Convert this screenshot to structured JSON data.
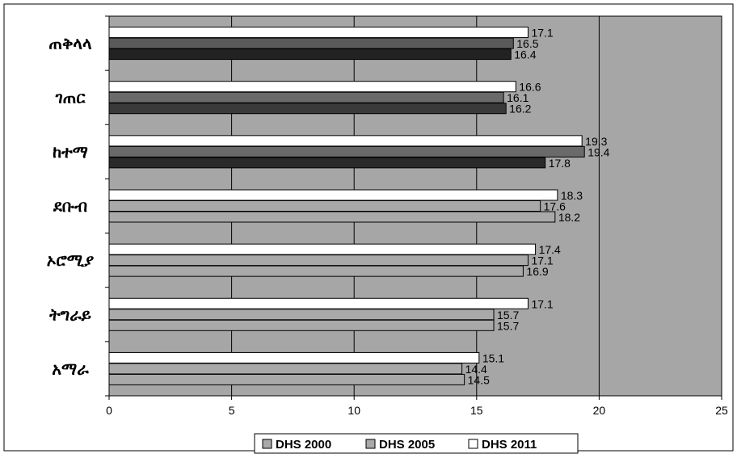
{
  "chart_data": {
    "type": "bar",
    "orientation": "horizontal",
    "categories": [
      "ጠቅላላ",
      "ገጠር",
      "ከተማ",
      "ደቡብ",
      "ኦሮሚያ",
      "ትግራይ",
      "አማራ"
    ],
    "series": [
      {
        "name": "DHS 2011",
        "color": "#ffffff",
        "values": [
          17.1,
          16.6,
          19.3,
          18.3,
          17.4,
          17.1,
          15.1
        ]
      },
      {
        "name": "DHS 2005",
        "color": "#5a5a5a",
        "values": [
          16.5,
          16.1,
          19.4,
          17.6,
          17.1,
          15.7,
          14.4
        ]
      },
      {
        "name": "DHS 2000",
        "color": "#3a3a3a",
        "values": [
          16.4,
          16.2,
          17.8,
          18.2,
          16.9,
          15.7,
          14.5
        ]
      }
    ],
    "series_colors_by_category": {
      "DHS 2000": [
        "#222222",
        "#3a3a3a",
        "#2a2a2a",
        "#a9a9a9",
        "#a9a9a9",
        "#a9a9a9",
        "#a9a9a9"
      ],
      "DHS 2005": [
        "#5a5a5a",
        "#6a6a6a",
        "#6a6a6a",
        "#a9a9a9",
        "#a9a9a9",
        "#a9a9a9",
        "#a9a9a9"
      ]
    },
    "xlim": [
      0,
      25
    ],
    "x_ticks": [
      "0",
      "5",
      "10",
      "15",
      "20",
      "25"
    ],
    "plot_background": "#a6a6a6",
    "gridlines": "vertical",
    "legend": {
      "placement": "bottom",
      "entries": [
        "DHS 2000",
        "DHS 2005",
        "DHS 2011"
      ],
      "swatch_colors": [
        "#a9a9a9",
        "#a9a9a9",
        "#ffffff"
      ]
    }
  }
}
